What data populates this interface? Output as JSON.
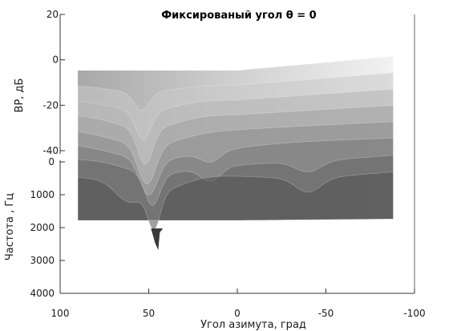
{
  "chart_data": {
    "type": "surface",
    "title": "Фиксированый угол θ = 0",
    "xlabel": "Угол азимута, град",
    "ylabel": "Частота , Гц",
    "zlabel": "ВР, дБ",
    "x_ticks": [
      "100",
      "50",
      "0",
      "-50",
      "-100"
    ],
    "y_ticks": [
      "0",
      "1000",
      "2000",
      "3000",
      "4000"
    ],
    "z_ticks": [
      "20",
      "0",
      "-20",
      "-40"
    ],
    "xlim": [
      -100,
      100
    ],
    "ylim": [
      0,
      4000
    ],
    "zlim": [
      -40,
      20
    ],
    "x_range_data": [
      -88,
      90
    ],
    "y_range_data": [
      0,
      4000
    ],
    "slices": [
      {
        "freq": 500,
        "base_db": 2,
        "notches": [
          {
            "az": 54,
            "depth": 10,
            "width": 6
          }
        ]
      },
      {
        "freq": 800,
        "base_db": -2,
        "notches": [
          {
            "az": 53,
            "depth": 16,
            "width": 6
          }
        ]
      },
      {
        "freq": 1100,
        "base_db": -6,
        "notches": [
          {
            "az": 52,
            "depth": 20,
            "width": 6
          }
        ]
      },
      {
        "freq": 1400,
        "base_db": -10,
        "notches": [
          {
            "az": 51,
            "depth": 22,
            "width": 7
          }
        ]
      },
      {
        "freq": 1700,
        "base_db": -12,
        "notches": [
          {
            "az": 50,
            "depth": 20,
            "width": 7
          },
          {
            "az": 15,
            "depth": 6,
            "width": 8
          }
        ]
      },
      {
        "freq": 2000,
        "base_db": -14,
        "notches": [
          {
            "az": 48,
            "depth": 18,
            "width": 6
          },
          {
            "az": 15,
            "depth": 8,
            "width": 8
          },
          {
            "az": -40,
            "depth": 6,
            "width": 10
          }
        ]
      },
      {
        "freq": 2300,
        "base_db": -16,
        "notches": [
          {
            "az": 62,
            "depth": 8,
            "width": 10
          },
          {
            "az": 47,
            "depth": 20,
            "width": 5
          },
          {
            "az": -40,
            "depth": 8,
            "width": 10
          }
        ]
      }
    ],
    "colormap": "gray",
    "grid": false
  }
}
